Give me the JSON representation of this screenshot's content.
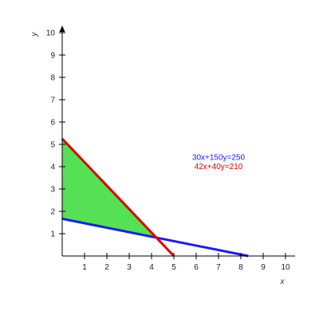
{
  "chart_data": {
    "type": "line",
    "xlabel": "x",
    "ylabel": "y",
    "xlim": [
      0,
      10
    ],
    "ylim": [
      0,
      10
    ],
    "x_ticks": [
      1,
      2,
      3,
      4,
      5,
      6,
      7,
      8,
      9,
      10
    ],
    "y_ticks": [
      1,
      2,
      3,
      4,
      5,
      6,
      7,
      8,
      9,
      10
    ],
    "grid": false,
    "series": [
      {
        "name": "30x+150y=250",
        "color": "#1a1aff",
        "x": [
          0,
          8.333
        ],
        "y": [
          1.667,
          0
        ]
      },
      {
        "name": "42x+40y=210",
        "color": "#e00000",
        "x": [
          0,
          5
        ],
        "y": [
          5.25,
          0
        ]
      }
    ],
    "shaded_region": {
      "color": "#55e055",
      "vertices": [
        [
          0,
          5.25
        ],
        [
          0,
          1.667
        ],
        [
          4.14,
          0.84
        ]
      ]
    },
    "annotations": [
      {
        "text": "30x+150y=250",
        "color": "#1a1aff",
        "x": 7.0,
        "y": 4.3
      },
      {
        "text": "42x+40y=210",
        "color": "#e00000",
        "x": 7.0,
        "y": 3.9
      }
    ]
  }
}
